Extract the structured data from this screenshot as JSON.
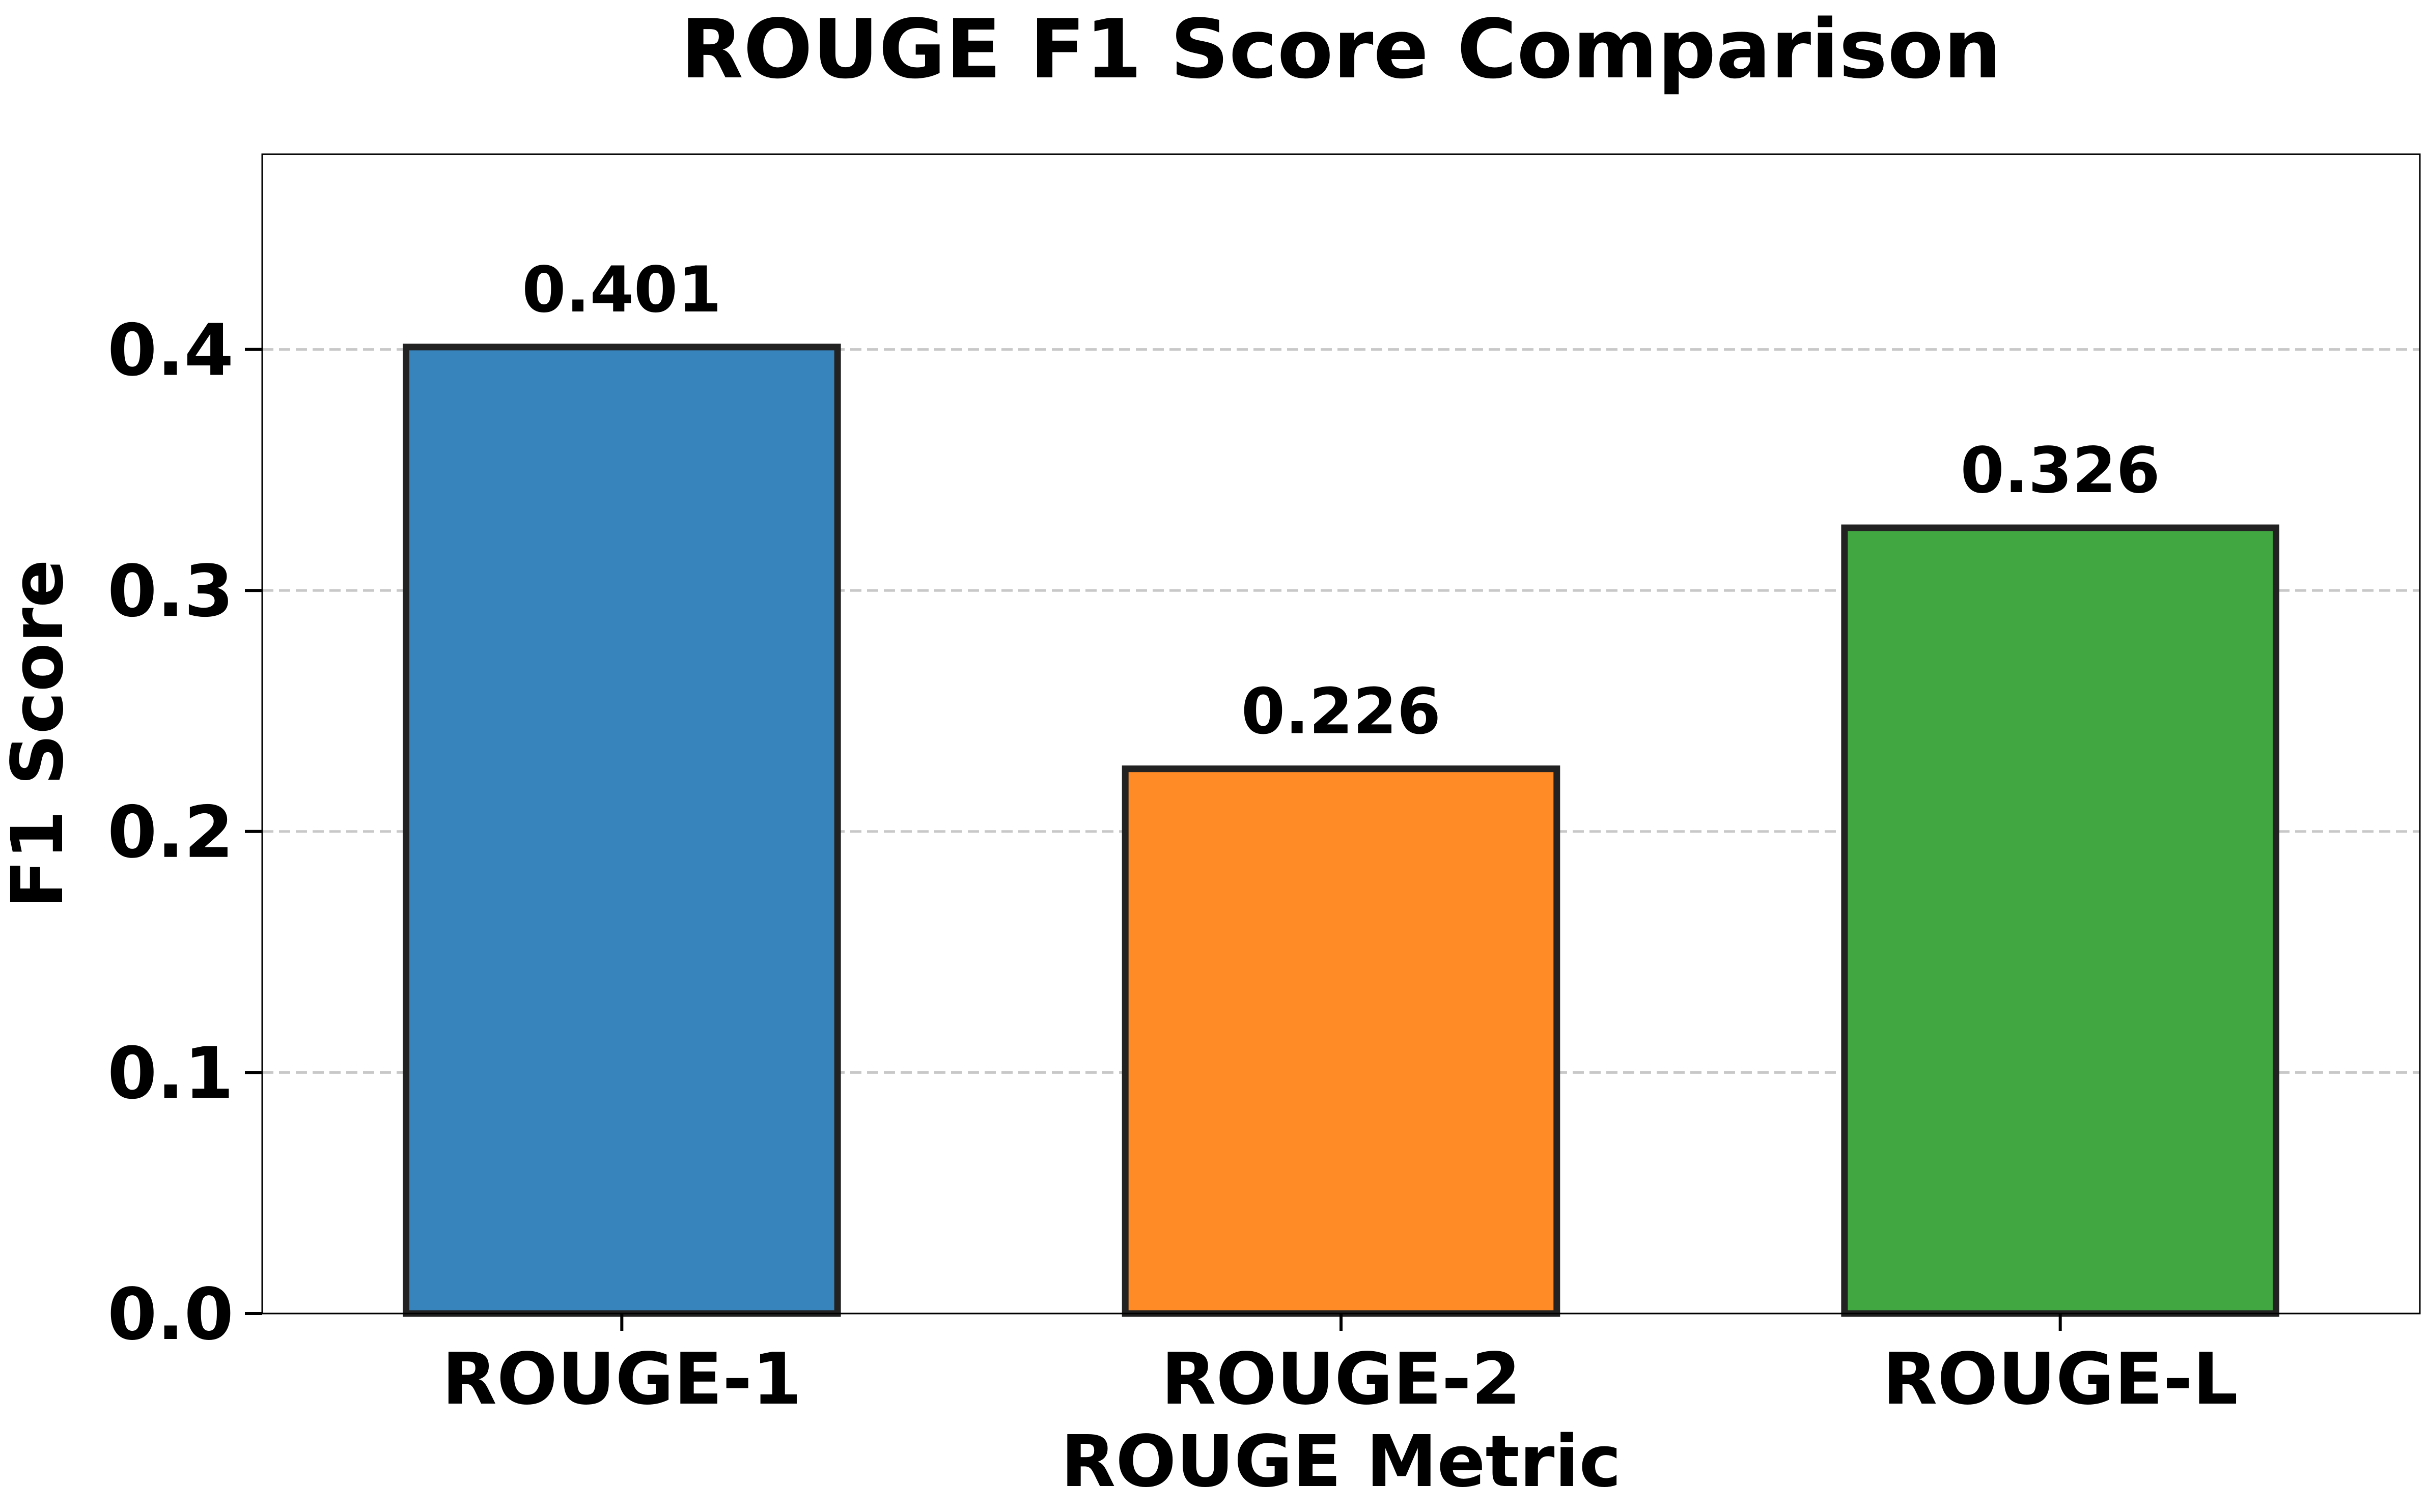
{
  "chart_data": {
    "type": "bar",
    "title": "ROUGE F1 Score Comparison",
    "xlabel": "ROUGE Metric",
    "ylabel": "F1 Score",
    "categories": [
      "ROUGE-1",
      "ROUGE-2",
      "ROUGE-L"
    ],
    "values": [
      0.401,
      0.226,
      0.326
    ],
    "value_labels": [
      "0.401",
      "0.226",
      "0.326"
    ],
    "bar_colors": [
      "#3783bb",
      "#ff8b27",
      "#41a841"
    ],
    "edge_color": "#222222",
    "ylim": [
      0,
      0.481
    ],
    "yticks": [
      0.0,
      0.1,
      0.2,
      0.3,
      0.4
    ],
    "ytick_labels": [
      "0.0",
      "0.1",
      "0.2",
      "0.3",
      "0.4"
    ],
    "grid": "y-dashed",
    "legend": "none"
  }
}
